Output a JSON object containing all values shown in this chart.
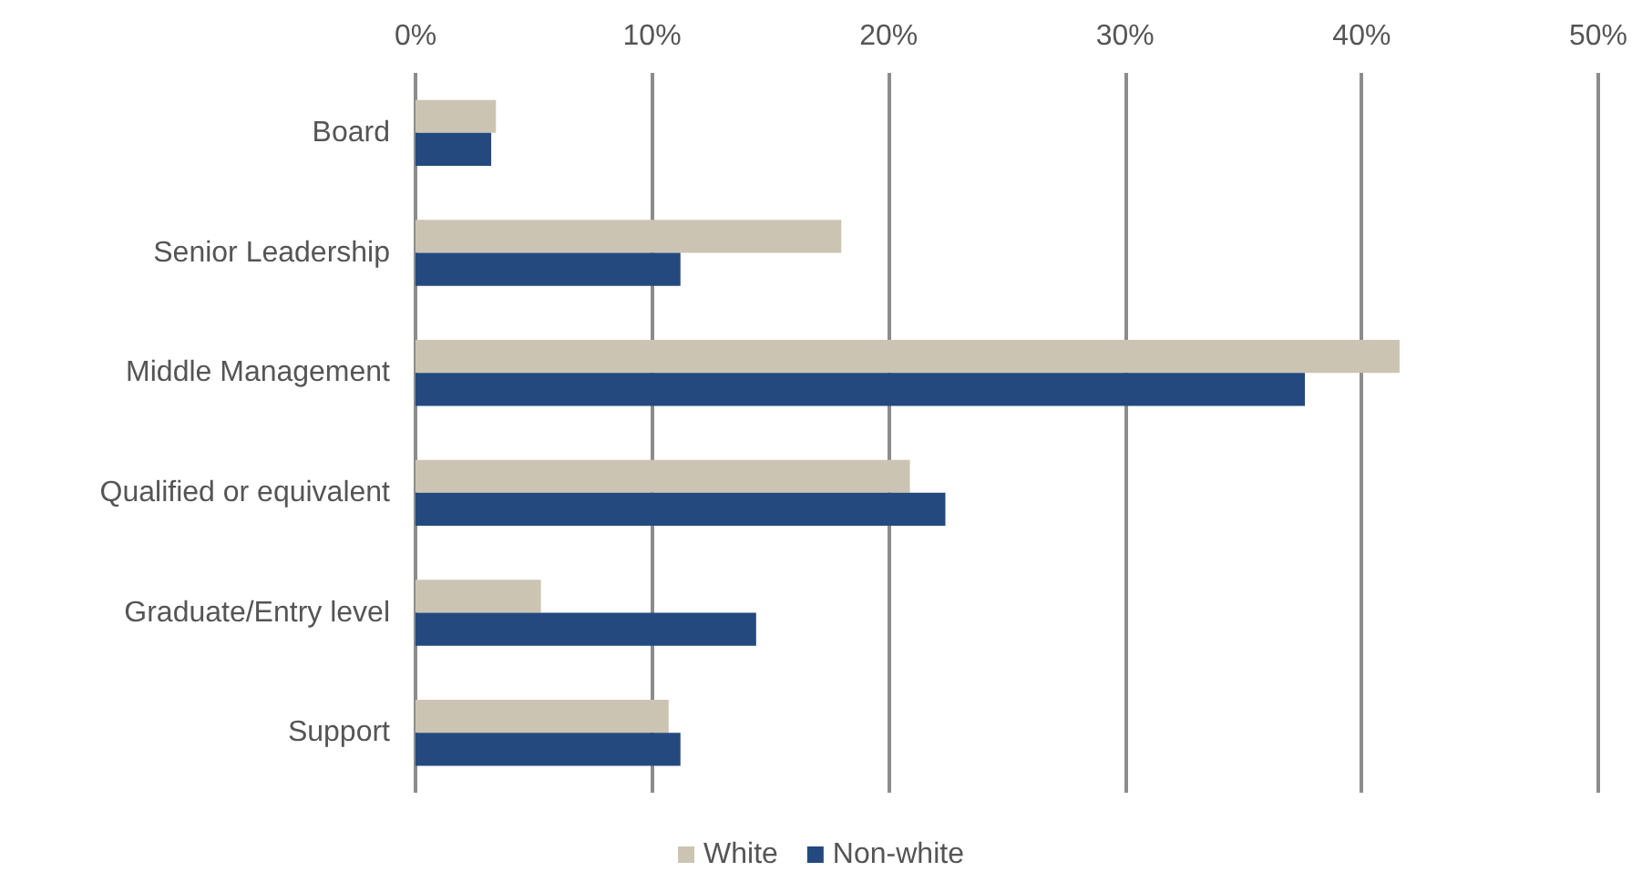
{
  "chart_data": {
    "type": "bar",
    "orientation": "horizontal",
    "categories": [
      "Board",
      "Senior Leadership",
      "Middle Management",
      "Qualified or equivalent",
      "Graduate/Entry level",
      "Support"
    ],
    "series": [
      {
        "name": "White",
        "color": "#ccc4b3",
        "values": [
          3.4,
          18.0,
          41.6,
          20.9,
          5.3,
          10.7
        ]
      },
      {
        "name": "Non-white",
        "color": "#24497f",
        "values": [
          3.2,
          11.2,
          37.6,
          22.4,
          14.4,
          11.2
        ]
      }
    ],
    "xlim": [
      0,
      50
    ],
    "xticks": [
      {
        "value": 0,
        "label": "0%"
      },
      {
        "value": 10,
        "label": "10%"
      },
      {
        "value": 20,
        "label": "20%"
      },
      {
        "value": 30,
        "label": "30%"
      },
      {
        "value": 40,
        "label": "40%"
      },
      {
        "value": 50,
        "label": "50%"
      }
    ],
    "grid": "x",
    "legend": "bottom"
  }
}
